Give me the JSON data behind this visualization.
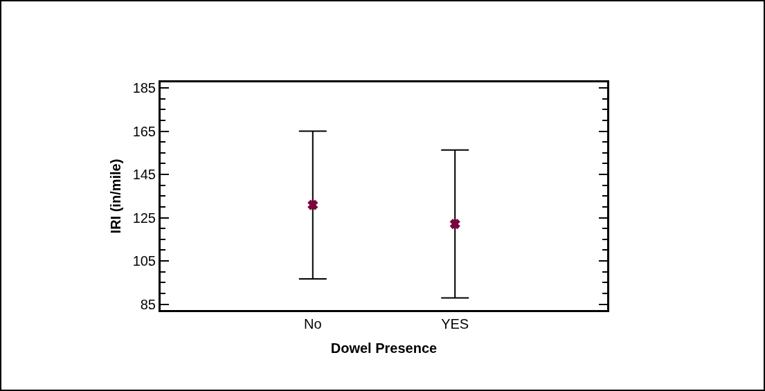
{
  "chart_data": {
    "type": "scatter",
    "xlabel": "Dowel Presence",
    "ylabel": "IRI (in/mile)",
    "categories": [
      "No",
      "YES"
    ],
    "series": [
      {
        "color": "#800040",
        "values": [
          130.9,
          122.1
        ],
        "errors": [
          [
            96.7,
            165
          ],
          [
            87.9,
            156.3
          ]
        ]
      }
    ],
    "ylim": [
      82.3,
      187.6
    ],
    "yticks": [
      85,
      105,
      125,
      145,
      165,
      185
    ],
    "grid": false,
    "marker": "cross"
  }
}
